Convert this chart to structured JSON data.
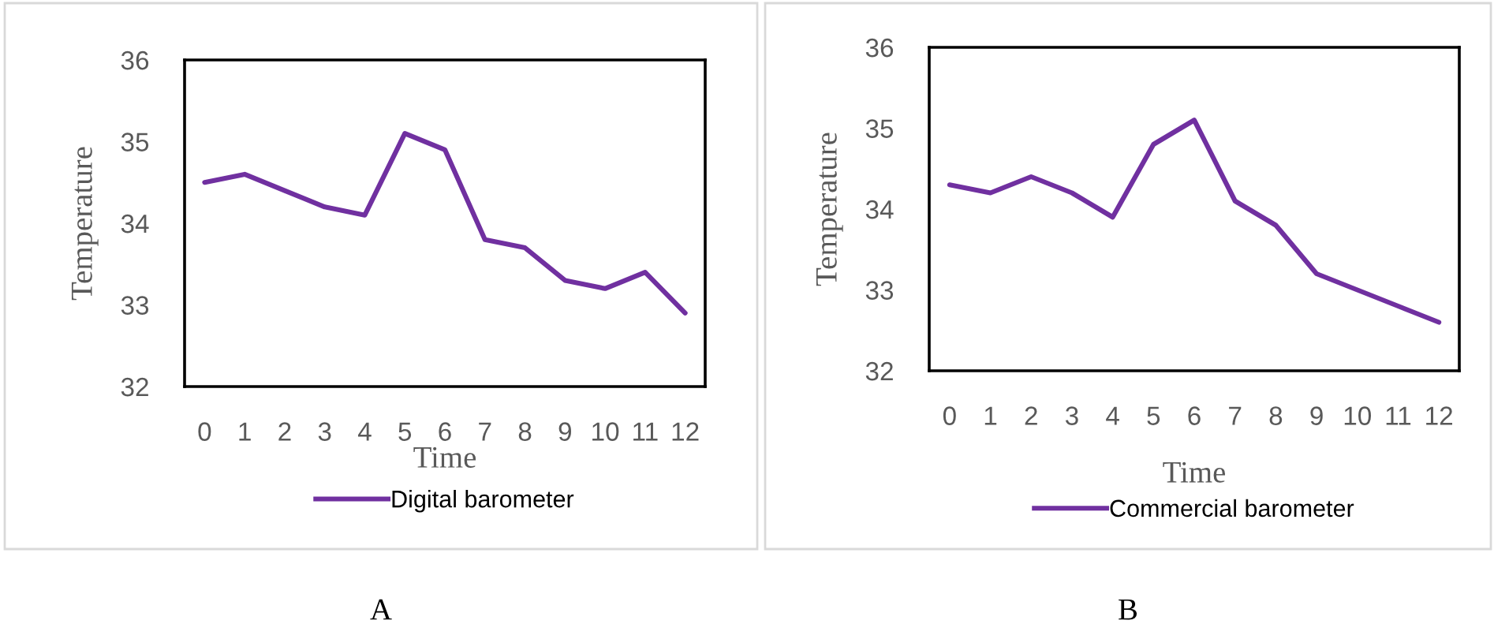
{
  "chart_data": [
    {
      "type": "line",
      "categories": [
        "0",
        "1",
        "2",
        "3",
        "4",
        "5",
        "6",
        "7",
        "8",
        "9",
        "10",
        "11",
        "12"
      ],
      "xlabel": "Time",
      "ylabel": "Temperature",
      "ylim": [
        32,
        36
      ],
      "yticks": [
        32,
        33,
        34,
        35,
        36
      ],
      "grid": false,
      "legend": "bottom",
      "annotations": [
        "A"
      ],
      "series": [
        {
          "name": "Digital barometer",
          "color": "#7030a0",
          "values": [
            34.5,
            34.6,
            34.4,
            34.2,
            34.1,
            35.1,
            34.9,
            33.8,
            33.7,
            33.3,
            33.2,
            33.4,
            32.9
          ]
        }
      ]
    },
    {
      "type": "line",
      "categories": [
        "0",
        "1",
        "2",
        "3",
        "4",
        "5",
        "6",
        "7",
        "8",
        "9",
        "10",
        "11",
        "12"
      ],
      "xlabel": "Time",
      "ylabel": "Temperature",
      "ylim": [
        32,
        36
      ],
      "yticks": [
        32,
        33,
        34,
        35,
        36
      ],
      "grid": false,
      "legend": "bottom",
      "annotations": [
        "B"
      ],
      "series": [
        {
          "name": "Commercial barometer",
          "color": "#7030a0",
          "values": [
            34.3,
            34.2,
            34.4,
            34.2,
            33.9,
            34.8,
            35.1,
            34.1,
            33.8,
            33.2,
            33.0,
            32.8,
            32.6
          ]
        }
      ]
    }
  ]
}
